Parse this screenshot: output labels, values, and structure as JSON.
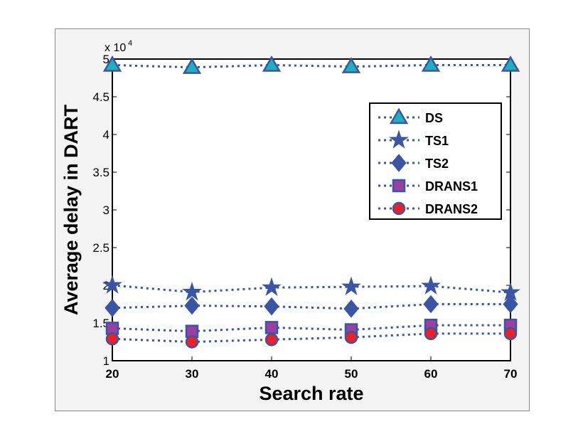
{
  "chart_data": {
    "type": "line",
    "title": "",
    "xlabel": "Search rate",
    "ylabel": "Average delay in DART",
    "y_multiplier": "x 10",
    "y_multiplier_exp": "4",
    "x": [
      20,
      30,
      40,
      50,
      60,
      70
    ],
    "xlim": [
      20,
      70
    ],
    "ylim": [
      1,
      5
    ],
    "xticks": [
      "20",
      "30",
      "40",
      "50",
      "60",
      "70"
    ],
    "yticks": [
      "1",
      "1.5",
      "2",
      "2.5",
      "3",
      "3.5",
      "4",
      "4.5",
      "5"
    ],
    "grid": false,
    "legend_position": "top-right",
    "series": [
      {
        "name": "DS",
        "marker": "triangle",
        "fill": "#1fb0c0",
        "values": [
          4.92,
          4.89,
          4.92,
          4.9,
          4.92,
          4.92
        ]
      },
      {
        "name": "TS1",
        "marker": "star",
        "fill": "#3a55a4",
        "values": [
          2.0,
          1.91,
          1.97,
          1.98,
          1.99,
          1.905
        ]
      },
      {
        "name": "TS2",
        "marker": "diamond",
        "fill": "#3a55a4",
        "values": [
          1.7,
          1.73,
          1.72,
          1.69,
          1.75,
          1.75
        ]
      },
      {
        "name": "DRANS1",
        "marker": "square",
        "fill": "#9b3fa0",
        "values": [
          1.43,
          1.39,
          1.44,
          1.41,
          1.47,
          1.47
        ]
      },
      {
        "name": "DRANS2",
        "marker": "circle",
        "fill": "#ee2024",
        "values": [
          1.29,
          1.25,
          1.28,
          1.31,
          1.36,
          1.36
        ]
      }
    ],
    "line_color": "#3a55a4"
  }
}
